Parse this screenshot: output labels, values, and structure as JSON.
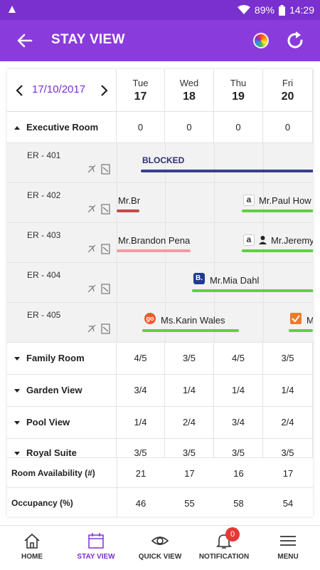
{
  "status_bar": {
    "battery": "89%",
    "time": "14:29"
  },
  "app_bar": {
    "title": "STAY VIEW"
  },
  "calendar": {
    "date": "17/10/2017",
    "days": [
      {
        "name": "Tue",
        "num": "17"
      },
      {
        "name": "Wed",
        "num": "18"
      },
      {
        "name": "Thu",
        "num": "19"
      },
      {
        "name": "Fri",
        "num": "20"
      }
    ]
  },
  "executive": {
    "label": "Executive Room",
    "values": [
      "0",
      "0",
      "0",
      "0"
    ]
  },
  "rooms": [
    {
      "name": "ER - 401"
    },
    {
      "name": "ER - 402"
    },
    {
      "name": "ER - 403"
    },
    {
      "name": "ER - 404"
    },
    {
      "name": "ER - 405"
    }
  ],
  "bookings": {
    "blocked": "BLOCKED",
    "b402a": "Mr.Br",
    "b402b": "Mr.Paul How",
    "b403a": "Mr.Brandon Pena",
    "b403b": "Mr.Jeremy",
    "b404": "Mr.Mia Dahl",
    "b405a": "Ms.Karin Wales",
    "b405b": "M",
    "source_amazon": "a",
    "source_booking": "B.",
    "source_go": "go"
  },
  "categories": [
    {
      "label": "Family Room",
      "values": [
        "4/5",
        "3/5",
        "4/5",
        "3/5"
      ]
    },
    {
      "label": "Garden View",
      "values": [
        "3/4",
        "1/4",
        "1/4",
        "1/4"
      ]
    },
    {
      "label": "Pool View",
      "values": [
        "1/4",
        "2/4",
        "3/4",
        "2/4"
      ]
    },
    {
      "label": "Royal Suite",
      "values": [
        "3/5",
        "3/5",
        "3/5",
        "3/5"
      ]
    }
  ],
  "summary": [
    {
      "label": "Room Availability (#)",
      "values": [
        "21",
        "17",
        "16",
        "17"
      ]
    },
    {
      "label": "Occupancy (%)",
      "values": [
        "46",
        "55",
        "58",
        "54"
      ]
    }
  ],
  "nav": {
    "home": "HOME",
    "stay_view": "STAY VIEW",
    "quick_view": "QUICK VIEW",
    "notification": "NOTIFICATION",
    "menu": "MENU",
    "notification_count": "0"
  },
  "colors": {
    "primary": "#8a3bdb",
    "status_bar": "#7a2fcf",
    "blocked_bar": "#3a3f8f",
    "green_bar": "#5fd13f",
    "red_bar": "#c24a4a",
    "pink_bar": "#f59aa0"
  }
}
